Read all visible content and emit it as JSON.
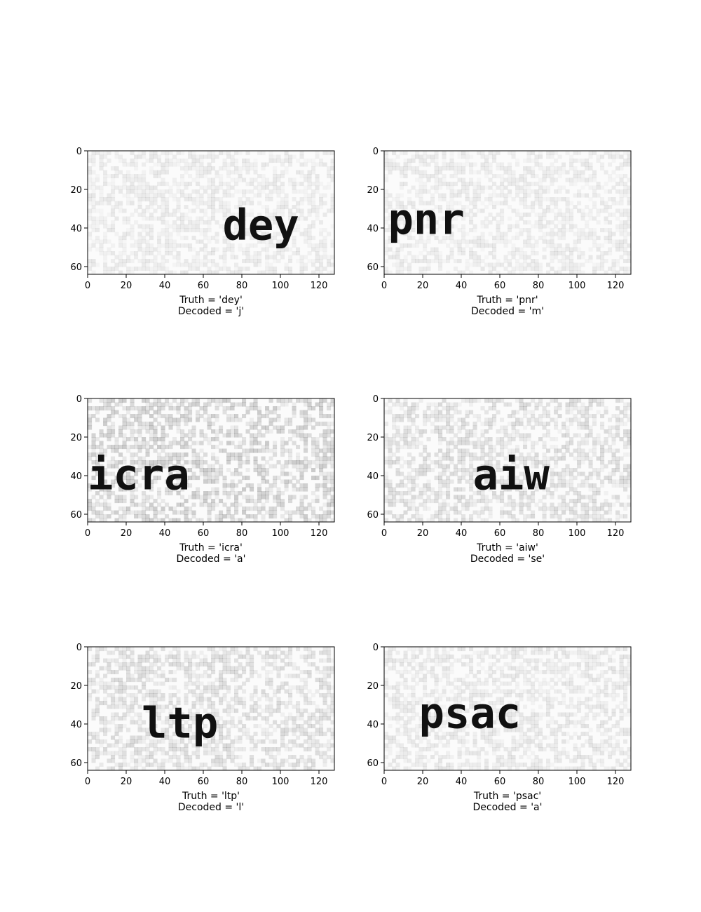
{
  "figure": {
    "background": "#ffffff",
    "panel_rows": 3,
    "panel_cols": 2
  },
  "chart_data": [
    {
      "type": "heatmap",
      "image_text": "dey",
      "text_x": 70,
      "text_baseline_y": 46,
      "caption": [
        "Truth = 'dey'",
        "Decoded = 'j'"
      ],
      "xlim": [
        0,
        128
      ],
      "ylim": [
        64,
        0
      ],
      "x_ticks": [
        0,
        20,
        40,
        60,
        80,
        100,
        120
      ],
      "y_ticks": [
        0,
        20,
        40,
        60
      ],
      "noise_level": 0.06
    },
    {
      "type": "heatmap",
      "image_text": "pnr",
      "text_x": 2,
      "text_baseline_y": 43,
      "caption": [
        "Truth = 'pnr'",
        "Decoded = 'm'"
      ],
      "xlim": [
        0,
        128
      ],
      "ylim": [
        64,
        0
      ],
      "x_ticks": [
        0,
        20,
        40,
        60,
        80,
        100,
        120
      ],
      "y_ticks": [
        0,
        20,
        40,
        60
      ],
      "noise_level": 0.06
    },
    {
      "type": "heatmap",
      "image_text": "icra",
      "text_x": 0,
      "text_baseline_y": 47,
      "caption": [
        "Truth = 'icra'",
        "Decoded = 'a'"
      ],
      "xlim": [
        0,
        128
      ],
      "ylim": [
        64,
        0
      ],
      "x_ticks": [
        0,
        20,
        40,
        60,
        80,
        100,
        120
      ],
      "y_ticks": [
        0,
        20,
        40,
        60
      ],
      "noise_level": 0.14
    },
    {
      "type": "heatmap",
      "image_text": "aiw",
      "text_x": 46,
      "text_baseline_y": 47,
      "caption": [
        "Truth = 'aiw'",
        "Decoded = 'se'"
      ],
      "xlim": [
        0,
        128
      ],
      "ylim": [
        64,
        0
      ],
      "x_ticks": [
        0,
        20,
        40,
        60,
        80,
        100,
        120
      ],
      "y_ticks": [
        0,
        20,
        40,
        60
      ],
      "noise_level": 0.1
    },
    {
      "type": "heatmap",
      "image_text": "ltp",
      "text_x": 28,
      "text_baseline_y": 47,
      "caption": [
        "Truth = 'ltp'",
        "Decoded = 'l'"
      ],
      "xlim": [
        0,
        128
      ],
      "ylim": [
        64,
        0
      ],
      "x_ticks": [
        0,
        20,
        40,
        60,
        80,
        100,
        120
      ],
      "y_ticks": [
        0,
        20,
        40,
        60
      ],
      "noise_level": 0.1
    },
    {
      "type": "heatmap",
      "image_text": "psac",
      "text_x": 18,
      "text_baseline_y": 42,
      "caption": [
        "Truth = 'psac'",
        "Decoded = 'a'"
      ],
      "xlim": [
        0,
        128
      ],
      "ylim": [
        64,
        0
      ],
      "x_ticks": [
        0,
        20,
        40,
        60,
        80,
        100,
        120
      ],
      "y_ticks": [
        0,
        20,
        40,
        60
      ],
      "noise_level": 0.07
    }
  ]
}
